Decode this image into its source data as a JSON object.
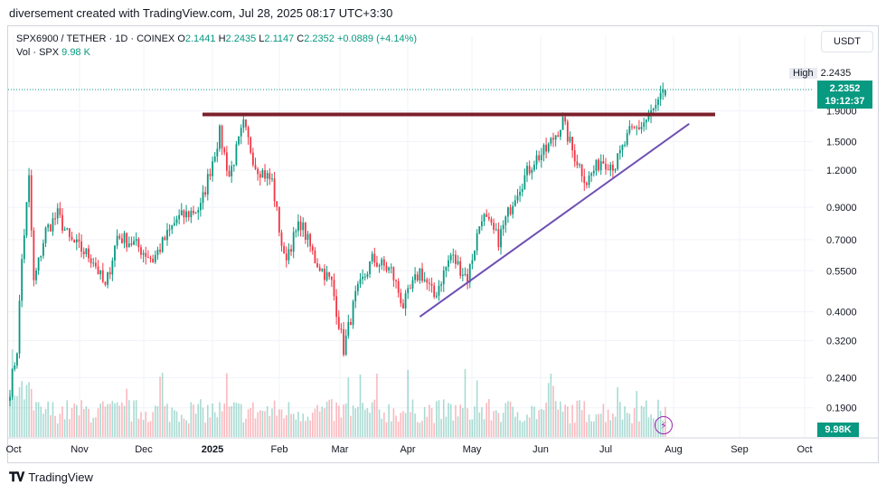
{
  "header": {
    "credit": "diversement created with TradingView.com, Jul 28, 2025 08:17 UTC+3:30"
  },
  "legend": {
    "symbol": "SPX6900 / TETHER · 1D · COINEX",
    "open_label": "O",
    "open": "2.1441",
    "high_label": "H",
    "high": "2.2435",
    "low_label": "L",
    "low": "2.1147",
    "close_label": "C",
    "close": "2.2352",
    "change": "+0.0889 (+4.14%)",
    "vol_label": "Vol · SPX",
    "vol": "9.98 K"
  },
  "toolbar": {
    "currency": "USDT"
  },
  "price_axis": {
    "last_price": "2.2352",
    "countdown": "19:12:37",
    "high_label": "High",
    "high_value": "2.2435",
    "vol_badge": "9.98K"
  },
  "footer": {
    "brand": "TradingView"
  },
  "colors": {
    "up": "#089981",
    "down": "#f23645",
    "resistance": "#7b1f2b",
    "trendline": "#6e4fb3",
    "grid": "#f0f3fa"
  },
  "chart_data": {
    "type": "candlestick",
    "scale": "log",
    "title": "SPX6900 / TETHER · 1D · COINEX",
    "y_ticks": [
      1.9,
      1.5,
      1.2,
      0.9,
      0.7,
      0.55,
      0.4,
      0.32,
      0.24,
      0.19
    ],
    "y_tick_labels": [
      "1.9000",
      "1.5000",
      "1.2000",
      "0.9000",
      "0.7000",
      "0.5500",
      "0.4000",
      "0.3200",
      "0.2400",
      "0.1900"
    ],
    "x_ticks": [
      "Oct",
      "Nov",
      "Dec",
      "2025",
      "Feb",
      "Mar",
      "Apr",
      "May",
      "Jun",
      "Jul",
      "Aug",
      "Sep",
      "Oct"
    ],
    "anchors": [
      {
        "day": 0,
        "price": 0.22
      },
      {
        "day": 3,
        "price": 0.3
      },
      {
        "day": 5,
        "price": 0.6
      },
      {
        "day": 8,
        "price": 1.12
      },
      {
        "day": 10,
        "price": 0.5
      },
      {
        "day": 15,
        "price": 0.75
      },
      {
        "day": 20,
        "price": 0.85
      },
      {
        "day": 25,
        "price": 0.7
      },
      {
        "day": 35,
        "price": 0.6
      },
      {
        "day": 40,
        "price": 0.48
      },
      {
        "day": 45,
        "price": 0.72
      },
      {
        "day": 52,
        "price": 0.68
      },
      {
        "day": 60,
        "price": 0.6
      },
      {
        "day": 70,
        "price": 0.82
      },
      {
        "day": 80,
        "price": 0.9
      },
      {
        "day": 85,
        "price": 1.3
      },
      {
        "day": 88,
        "price": 1.6
      },
      {
        "day": 92,
        "price": 1.15
      },
      {
        "day": 98,
        "price": 1.7
      },
      {
        "day": 103,
        "price": 1.25
      },
      {
        "day": 110,
        "price": 1.1
      },
      {
        "day": 115,
        "price": 0.6
      },
      {
        "day": 122,
        "price": 0.8
      },
      {
        "day": 128,
        "price": 0.6
      },
      {
        "day": 135,
        "price": 0.5
      },
      {
        "day": 140,
        "price": 0.3
      },
      {
        "day": 145,
        "price": 0.45
      },
      {
        "day": 152,
        "price": 0.6
      },
      {
        "day": 160,
        "price": 0.55
      },
      {
        "day": 165,
        "price": 0.42
      },
      {
        "day": 172,
        "price": 0.55
      },
      {
        "day": 178,
        "price": 0.45
      },
      {
        "day": 185,
        "price": 0.62
      },
      {
        "day": 192,
        "price": 0.52
      },
      {
        "day": 198,
        "price": 0.85
      },
      {
        "day": 205,
        "price": 0.7
      },
      {
        "day": 212,
        "price": 1.0
      },
      {
        "day": 220,
        "price": 1.3
      },
      {
        "day": 225,
        "price": 1.4
      },
      {
        "day": 232,
        "price": 1.75
      },
      {
        "day": 236,
        "price": 1.4
      },
      {
        "day": 242,
        "price": 1.1
      },
      {
        "day": 248,
        "price": 1.3
      },
      {
        "day": 254,
        "price": 1.25
      },
      {
        "day": 260,
        "price": 1.6
      },
      {
        "day": 265,
        "price": 1.7
      },
      {
        "day": 270,
        "price": 1.9
      },
      {
        "day": 275,
        "price": 2.23
      }
    ],
    "candle_count": 276,
    "last": {
      "open": 2.1441,
      "high": 2.2435,
      "low": 2.1147,
      "close": 2.2352
    },
    "high_line": 2.2435,
    "resistance_level": 1.85,
    "trendline": {
      "from": {
        "day": 172,
        "price": 0.385
      },
      "to": {
        "day": 285,
        "price": 1.72
      }
    },
    "volume_last": "9.98K"
  }
}
